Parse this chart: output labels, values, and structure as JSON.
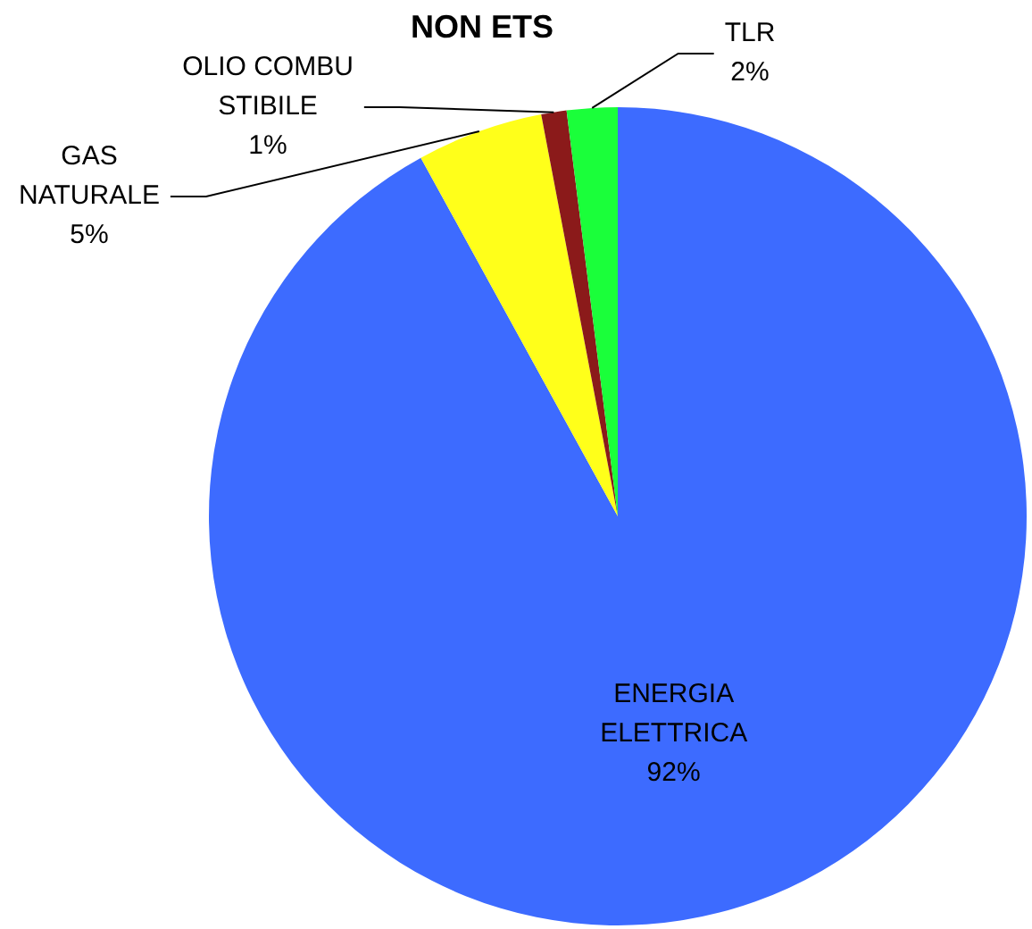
{
  "chart_data": {
    "type": "pie",
    "title": "NON ETS",
    "categories": [
      "ENERGIA\nELETTRICA",
      "GAS\nNATURALE",
      "OLIO COMBU\nSTIBILE",
      "TLR"
    ],
    "values": [
      92,
      5,
      1,
      2
    ],
    "colors": [
      "#3d6bff",
      "#ffff1a",
      "#8b1a1a",
      "#1aff3a"
    ],
    "value_labels": [
      "92%",
      "5%",
      "1%",
      "2%"
    ],
    "legend": false
  }
}
